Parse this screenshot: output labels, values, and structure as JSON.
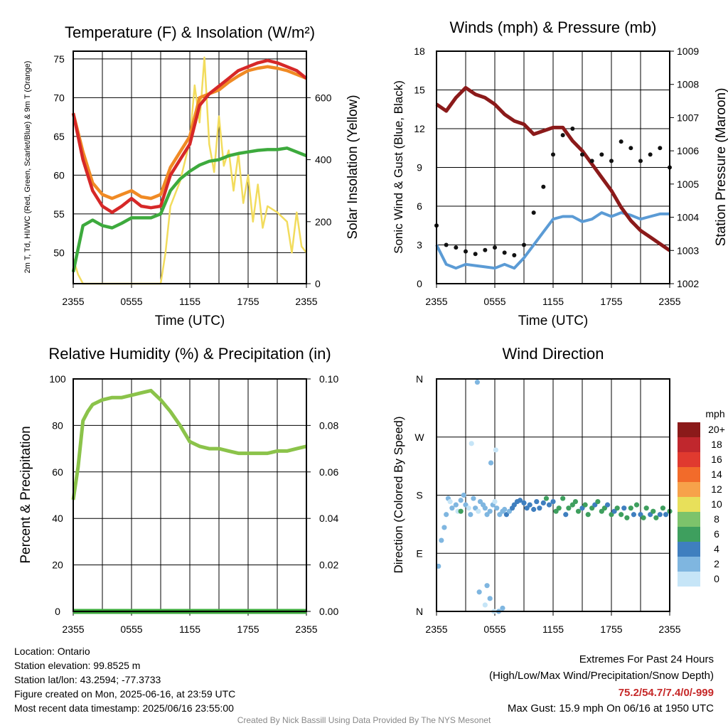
{
  "chart_data": [
    {
      "id": "temp",
      "type": "line",
      "title": "Temperature (F) & Insolation (W/m²)",
      "xlabel": "Time (UTC)",
      "ylabel": "2m T, Td, HI/WC (Red, Green, Scarlet/Blue) & 9m T (Orange)",
      "y2label": "Solar Insolation (Yellow)",
      "x_ticks": [
        "2355",
        "0555",
        "1155",
        "1755",
        "2355"
      ],
      "ylim": [
        46,
        76
      ],
      "y_ticks": [
        50,
        55,
        60,
        65,
        70,
        75
      ],
      "y2lim": [
        0,
        750
      ],
      "y2_ticks": [
        0,
        200,
        400,
        600
      ],
      "series": [
        {
          "color": "#d62828",
          "axis": "left",
          "x": [
            0,
            1,
            2,
            3,
            4,
            5,
            6,
            7,
            8,
            9,
            10,
            11,
            12,
            13,
            14,
            15,
            16,
            17,
            18,
            19,
            20,
            21,
            22,
            23,
            24
          ],
          "values": [
            68,
            62,
            58,
            56,
            55.2,
            56,
            57,
            56,
            55.8,
            56,
            60,
            62,
            64,
            69,
            70.5,
            71.5,
            72.5,
            73.5,
            74,
            74.5,
            74.8,
            74.5,
            74,
            73.5,
            72.5
          ]
        },
        {
          "color": "#f08a24",
          "axis": "left",
          "x": [
            0,
            1,
            2,
            3,
            4,
            5,
            6,
            7,
            8,
            9,
            10,
            11,
            12,
            13,
            14,
            15,
            16,
            17,
            18,
            19,
            20,
            21,
            22,
            23,
            24
          ],
          "values": [
            68,
            63,
            59,
            57.5,
            57,
            57.5,
            58,
            57.2,
            57,
            57.5,
            61,
            63,
            65,
            70,
            70.5,
            71,
            72,
            72.8,
            73.5,
            73.8,
            74,
            73.8,
            73.5,
            73,
            72.5
          ]
        },
        {
          "color": "#3daa3d",
          "axis": "left",
          "x": [
            0,
            1,
            2,
            3,
            4,
            5,
            6,
            7,
            8,
            9,
            10,
            11,
            12,
            13,
            14,
            15,
            16,
            17,
            18,
            19,
            20,
            21,
            22,
            23,
            24
          ],
          "values": [
            47.5,
            53.5,
            54.2,
            53.5,
            53.2,
            53.8,
            54.5,
            54.5,
            54.5,
            55,
            58,
            59.5,
            60.5,
            61.3,
            61.8,
            62,
            62.5,
            62.8,
            63,
            63.2,
            63.3,
            63.3,
            63.5,
            63,
            62.5
          ]
        },
        {
          "color": "#f2dc5d",
          "axis": "right",
          "x": [
            0,
            0.5,
            1,
            2,
            3,
            4,
            5,
            6,
            7,
            8,
            9,
            9.5,
            10,
            11,
            12,
            12.5,
            13,
            13.5,
            14,
            14.5,
            15,
            15.5,
            16,
            16.5,
            17,
            17.5,
            18,
            18.5,
            19,
            19.5,
            20,
            21,
            22,
            22.5,
            23,
            23.5,
            24
          ],
          "values": [
            80,
            30,
            0,
            0,
            0,
            0,
            0,
            0,
            0,
            0,
            0,
            100,
            250,
            330,
            460,
            640,
            520,
            730,
            450,
            360,
            540,
            380,
            430,
            300,
            420,
            260,
            350,
            200,
            320,
            180,
            250,
            230,
            200,
            100,
            230,
            120,
            100
          ]
        }
      ]
    },
    {
      "id": "wind",
      "type": "line",
      "title": "Winds (mph) & Pressure (mb)",
      "xlabel": "Time (UTC)",
      "ylabel": "Sonic Wind & Gust (Blue, Black)",
      "y2label": "Station Pressure (Maroon)",
      "x_ticks": [
        "2355",
        "0555",
        "1155",
        "1755",
        "2355"
      ],
      "ylim": [
        0,
        18
      ],
      "y_ticks": [
        0,
        3,
        6,
        9,
        12,
        15,
        18
      ],
      "y2lim": [
        1002,
        1009
      ],
      "y2_ticks": [
        1002,
        1003,
        1004,
        1005,
        1006,
        1007,
        1008,
        1009
      ],
      "series": [
        {
          "color": "#8b1a1a",
          "axis": "right",
          "x": [
            0,
            1,
            2,
            3,
            4,
            5,
            6,
            7,
            8,
            9,
            10,
            11,
            12,
            13,
            14,
            15,
            16,
            17,
            18,
            19,
            20,
            21,
            22,
            23,
            24
          ],
          "values": [
            1007.4,
            1007.2,
            1007.6,
            1007.9,
            1007.7,
            1007.6,
            1007.4,
            1007.1,
            1006.9,
            1006.8,
            1006.5,
            1006.6,
            1006.7,
            1006.7,
            1006.3,
            1006.0,
            1005.6,
            1005.2,
            1004.8,
            1004.3,
            1003.9,
            1003.6,
            1003.4,
            1003.2,
            1003.0
          ]
        },
        {
          "color": "#5b9bd5",
          "axis": "left",
          "x": [
            0,
            1,
            2,
            3,
            4,
            5,
            6,
            7,
            8,
            9,
            10,
            11,
            12,
            13,
            14,
            15,
            16,
            17,
            18,
            19,
            20,
            21,
            22,
            23,
            24
          ],
          "values": [
            3,
            1.5,
            1.2,
            1.5,
            1.4,
            1.3,
            1.2,
            1.5,
            1.2,
            2,
            3,
            4,
            5,
            5.2,
            5.2,
            4.8,
            5,
            5.5,
            5.2,
            5.5,
            5.3,
            5,
            5.2,
            5.4,
            5.4
          ]
        },
        {
          "color": "#111111",
          "axis": "left",
          "mode": "markers",
          "x": [
            0,
            1,
            2,
            3,
            4,
            5,
            6,
            7,
            8,
            9,
            10,
            11,
            12,
            13,
            14,
            15,
            16,
            17,
            18,
            19,
            20,
            21,
            22,
            23,
            24
          ],
          "values": [
            4.5,
            3,
            2.8,
            2.5,
            2.3,
            2.6,
            2.8,
            2.4,
            2.2,
            3,
            5.5,
            7.5,
            10,
            11.5,
            12,
            10,
            9.5,
            10,
            9.5,
            11,
            10.5,
            9.5,
            10,
            10.5,
            9
          ]
        }
      ]
    },
    {
      "id": "rh",
      "type": "line",
      "title": "Relative Humidity (%) & Precipitation (in)",
      "xlabel": "",
      "ylabel": "Percent & Precipitation",
      "x_ticks": [
        "2355",
        "0555",
        "1155",
        "1755",
        "2355"
      ],
      "ylim": [
        0,
        100
      ],
      "y_ticks": [
        0,
        20,
        40,
        60,
        80,
        100
      ],
      "y2lim": [
        0,
        0.1
      ],
      "y2_ticks": [
        "0.00",
        "0.02",
        "0.04",
        "0.06",
        "0.08",
        "0.10"
      ],
      "series": [
        {
          "color": "#8bc34a",
          "axis": "left",
          "x": [
            0,
            0.5,
            1,
            1.5,
            2,
            3,
            4,
            5,
            6,
            7,
            8,
            9,
            10,
            11,
            12,
            13,
            14,
            15,
            16,
            17,
            18,
            19,
            20,
            21,
            22,
            23,
            24
          ],
          "values": [
            48,
            62,
            82,
            86,
            89,
            91,
            92,
            92,
            93,
            94,
            95,
            91,
            86,
            80,
            73,
            71,
            70,
            70,
            69,
            68,
            68,
            68,
            68,
            69,
            69,
            70,
            71
          ]
        },
        {
          "color": "#3daa3d",
          "axis": "right",
          "x": [
            0,
            24
          ],
          "values": [
            0,
            0
          ]
        }
      ]
    },
    {
      "id": "dir",
      "type": "scatter",
      "title": "Wind Direction",
      "xlabel": "",
      "ylabel": "Direction (Colored By Speed)",
      "x_ticks": [
        "2355",
        "0555",
        "1155",
        "1755",
        "2355"
      ],
      "y_ticks": [
        "N",
        "E",
        "S",
        "W",
        "N"
      ],
      "ylim": [
        0,
        360
      ],
      "legend_title": "mph",
      "legend_labels": [
        "20+",
        "18",
        "16",
        "14",
        "12",
        "10",
        "8",
        "6",
        "4",
        "2",
        "0"
      ],
      "legend_colors": [
        "#8b1a1a",
        "#c0272d",
        "#e03a2f",
        "#f26b2a",
        "#f7a24a",
        "#e8e05a",
        "#7dc36b",
        "#3e9f5e",
        "#3f7fbf",
        "#7fb6e0",
        "#c6e5f7"
      ],
      "points_hour": [
        0.2,
        0.5,
        0.8,
        1,
        1.2,
        1.4,
        1.6,
        2,
        2.2,
        2.5,
        2.8,
        3,
        3.3,
        3.5,
        3.8,
        4,
        4.3,
        4.5,
        4.8,
        5,
        5.2,
        5.5,
        5.8,
        6,
        6.2,
        6.5,
        6.8,
        7,
        7.2,
        7.5,
        7.8,
        8,
        8.3,
        8.6,
        9,
        9.3,
        9.6,
        10,
        10.3,
        10.6,
        11,
        11.3,
        11.6,
        12,
        12.3,
        12.6,
        13,
        13.3,
        13.6,
        14,
        14.3,
        14.6,
        15,
        15.3,
        15.6,
        16,
        16.3,
        16.6,
        17,
        17.3,
        17.6,
        18,
        18.3,
        18.6,
        19,
        19.3,
        19.6,
        20,
        20.3,
        20.6,
        21,
        21.3,
        21.6,
        22,
        22.3,
        22.6,
        23,
        23.3,
        23.6,
        24,
        2.5,
        3.6,
        5.2,
        5.5,
        5.9,
        4.2,
        4.4,
        5.0,
        5.6,
        6.1,
        6.4,
        6.8
      ],
      "points_dir": [
        70,
        110,
        130,
        150,
        175,
        170,
        160,
        165,
        155,
        172,
        180,
        165,
        160,
        150,
        175,
        160,
        155,
        170,
        165,
        160,
        150,
        155,
        165,
        170,
        160,
        150,
        155,
        158,
        150,
        155,
        160,
        165,
        170,
        172,
        168,
        160,
        165,
        158,
        170,
        160,
        168,
        175,
        165,
        170,
        155,
        160,
        175,
        150,
        160,
        165,
        170,
        155,
        160,
        165,
        150,
        160,
        165,
        170,
        155,
        160,
        165,
        150,
        155,
        160,
        150,
        160,
        145,
        160,
        150,
        165,
        150,
        145,
        160,
        150,
        155,
        145,
        150,
        160,
        150,
        155,
        155,
        260,
        40,
        20,
        0,
        355,
        30,
        10,
        230,
        250,
        0,
        5,
        40
      ],
      "points_speed": [
        1,
        1,
        2,
        1,
        1,
        0,
        1,
        1,
        0,
        1,
        1,
        1,
        0,
        1,
        1,
        1,
        0,
        1,
        1,
        2,
        1,
        1,
        1,
        0,
        1,
        1,
        1,
        2,
        3,
        2,
        3,
        3,
        3,
        4,
        3,
        4,
        4,
        3,
        4,
        4,
        4,
        5,
        4,
        4,
        5,
        5,
        6,
        4,
        5,
        5,
        5,
        6,
        4,
        5,
        5,
        6,
        4,
        5,
        5,
        6,
        4,
        5,
        4,
        6,
        5,
        4,
        5,
        6,
        4,
        5,
        4,
        5,
        6,
        4,
        5,
        5,
        4,
        5,
        4,
        5,
        5,
        0,
        1,
        1,
        0,
        1,
        1,
        0,
        1,
        0,
        1,
        1,
        1
      ]
    }
  ],
  "meta": {
    "location": "Location: Ontario",
    "elevation": "Station elevation: 99.8525 m",
    "latlon": "Station lat/lon: 43.2594; -77.3733",
    "created": "Figure created on Mon, 2025-06-16, at 23:59 UTC",
    "recent": "Most recent data timestamp: 2025/06/16 23:55:00"
  },
  "extremes": {
    "title": "Extremes For Past 24 Hours",
    "subtitle": "(High/Low/Max Wind/Precipitation/Snow Depth)",
    "values": "75.2/54.7/7.4/0/-999",
    "values_color": "#c62828",
    "gust": "Max Gust: 15.9 mph On 06/16 at 1950 UTC"
  },
  "credit": "Created By Nick Bassill Using Data Provided By The NYS Mesonet"
}
